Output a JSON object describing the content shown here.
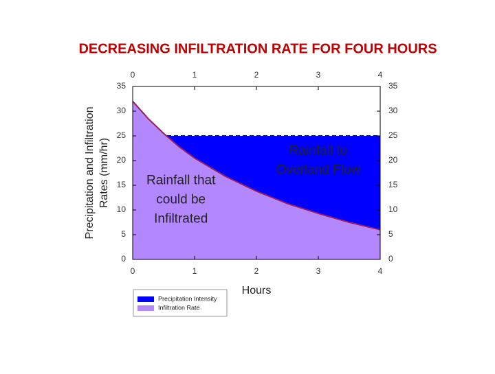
{
  "chart_data": {
    "type": "area",
    "title": "DECREASING INFILTRATION RATE FOR FOUR HOURS",
    "y_label": [
      "Precipitation and  Infiltration",
      "Rates (mm/hr)"
    ],
    "x_label": "Hours",
    "xlim": [
      0,
      4
    ],
    "xticks": [
      0,
      1,
      2,
      3,
      4
    ],
    "ylim": [
      0,
      35
    ],
    "yticks": [
      0,
      5,
      10,
      15,
      20,
      25,
      30,
      35
    ],
    "series": [
      {
        "name": "Precipitation Intensity",
        "color": "#0000ff",
        "x": [
          0,
          4
        ],
        "values": [
          25,
          25
        ]
      },
      {
        "name": "Infiltration Rate",
        "color": "#b388ff",
        "x": [
          0,
          0.25,
          0.5,
          0.75,
          1,
          1.5,
          2,
          2.5,
          3,
          3.5,
          4
        ],
        "values": [
          32,
          28.5,
          25.5,
          22.8,
          20.5,
          16.8,
          13.8,
          11.3,
          9.3,
          7.5,
          6
        ]
      }
    ],
    "annotations": [
      {
        "lines": [
          "Rainfall that",
          "could be",
          "Infiltrated"
        ],
        "x": 0.78,
        "y": 12
      },
      {
        "lines": [
          "Rainfall to",
          "Overland Flow"
        ],
        "x": 3.0,
        "y": 20
      }
    ]
  }
}
